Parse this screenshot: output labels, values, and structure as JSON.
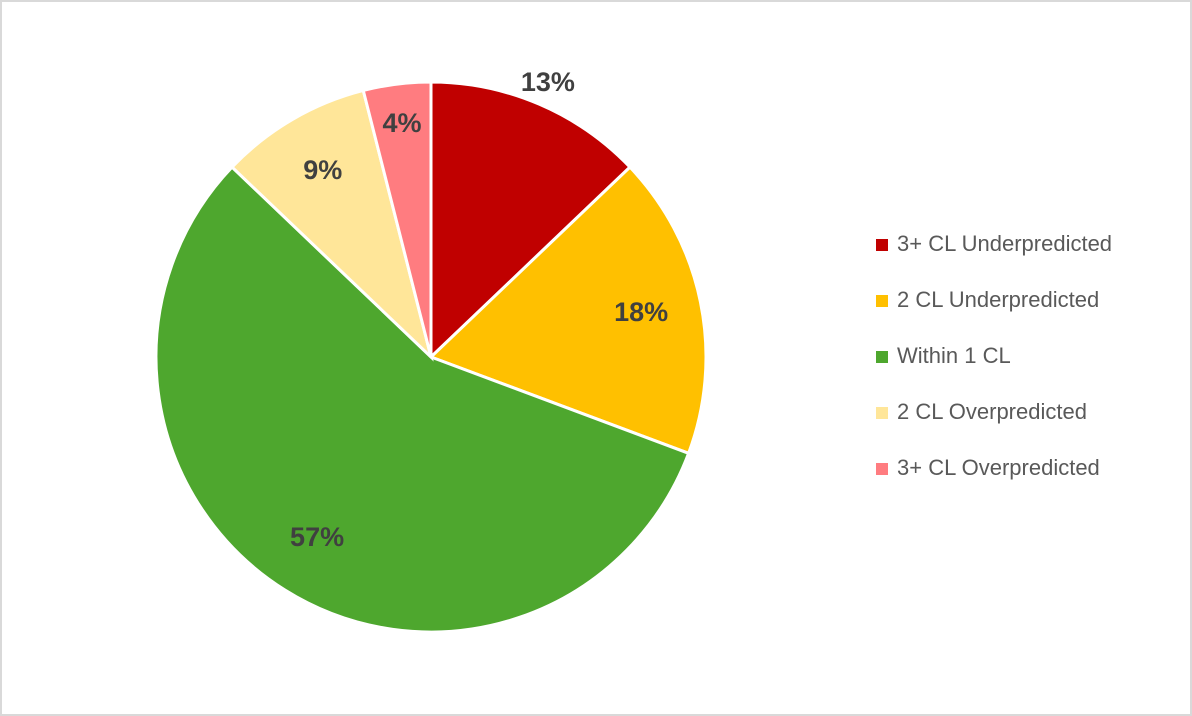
{
  "chart_data": {
    "type": "pie",
    "categories": [
      "3+ CL Underpredicted",
      "2 CL Underpredicted",
      "Within 1 CL",
      "2 CL Overpredicted",
      "3+ CL Overpredicted"
    ],
    "values": [
      13,
      18,
      57,
      9,
      4
    ],
    "value_labels": [
      "13%",
      "18%",
      "57%",
      "9%",
      "4%"
    ],
    "colors": [
      "#c00000",
      "#ffc000",
      "#4ea72e",
      "#ffe699",
      "#ff7c80"
    ],
    "legend": "right"
  }
}
